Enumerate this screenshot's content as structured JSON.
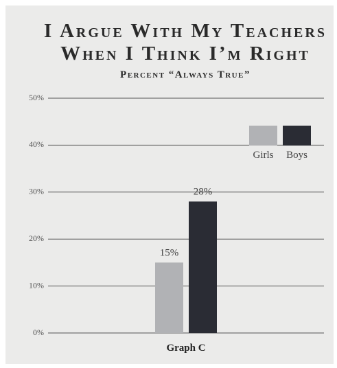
{
  "chart_data": {
    "type": "bar",
    "title": [
      "I Argue With My Teachers",
      "When I Think I’m Right"
    ],
    "subtitle": "Percent “Always True”",
    "categories": [
      "Graph C"
    ],
    "series": [
      {
        "name": "Girls",
        "color": "#b1b2b5",
        "values": [
          15
        ],
        "value_labels": [
          "15%"
        ]
      },
      {
        "name": "Boys",
        "color": "#2a2c34",
        "values": [
          28
        ],
        "value_labels": [
          "28%"
        ]
      }
    ],
    "ylim": [
      0,
      50
    ],
    "yticks": [
      {
        "value": 0,
        "label": "0%"
      },
      {
        "value": 10,
        "label": "10%"
      },
      {
        "value": 20,
        "label": "20%"
      },
      {
        "value": 30,
        "label": "30%"
      },
      {
        "value": 40,
        "label": "40%"
      },
      {
        "value": 50,
        "label": "50%"
      }
    ],
    "grid": true,
    "legend": "top-right"
  }
}
